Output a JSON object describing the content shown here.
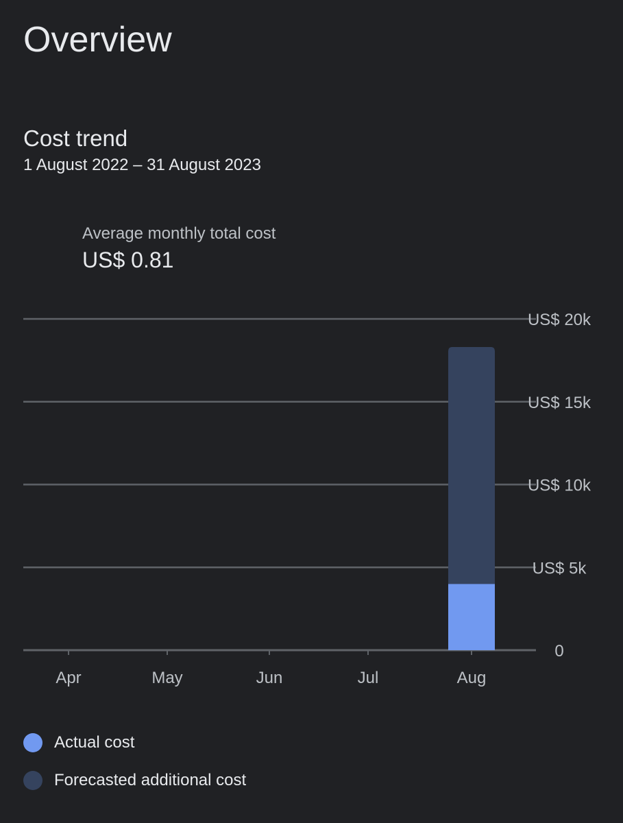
{
  "page": {
    "title": "Overview"
  },
  "section": {
    "title": "Cost trend",
    "date_range": "1 August 2022 – 31 August 2023"
  },
  "summary": {
    "label": "Average monthly total cost",
    "value": "US$ 0.81"
  },
  "colors": {
    "background": "#202124",
    "actual": "#7199f0",
    "forecast": "#35435e",
    "grid": "#5f6368",
    "axis_text": "#bdc1c6"
  },
  "chart_data": {
    "type": "bar",
    "stacked": true,
    "categories": [
      "Apr",
      "May",
      "Jun",
      "Jul",
      "Aug"
    ],
    "series": [
      {
        "name": "Actual cost",
        "color": "#7199f0",
        "values": [
          0,
          0,
          0,
          0,
          4000
        ]
      },
      {
        "name": "Forecasted additional cost",
        "color": "#35435e",
        "values": [
          0,
          0,
          0,
          0,
          14300
        ]
      }
    ],
    "yticks": [
      0,
      5000,
      10000,
      15000,
      20000
    ],
    "ytick_labels": [
      "0",
      "US$ 5k",
      "US$ 10k",
      "US$ 15k",
      "US$ 20k"
    ],
    "ylim": [
      0,
      20000
    ],
    "y_axis_position": "right",
    "grid": true,
    "legend_position": "bottom"
  }
}
